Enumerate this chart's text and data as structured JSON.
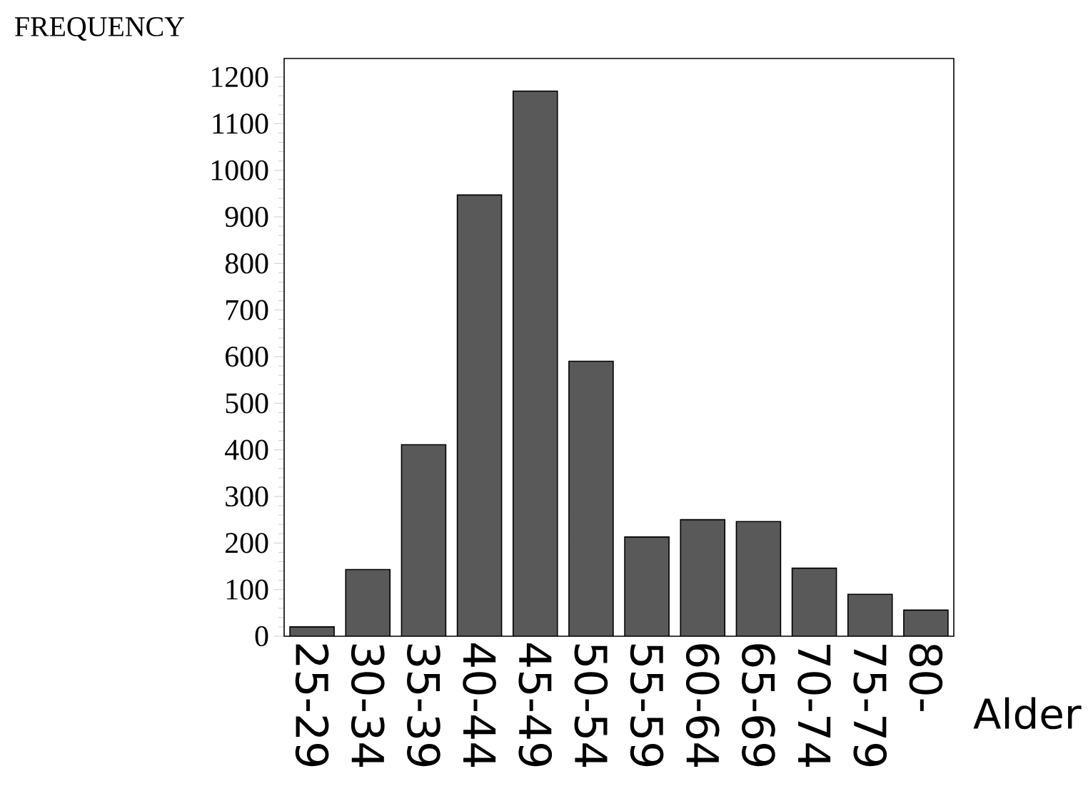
{
  "chart_data": {
    "type": "bar",
    "xlabel": "Alder",
    "ylabel": "FREQUENCY",
    "categories": [
      "25-29",
      "30-34",
      "35-39",
      "40-44",
      "45-49",
      "50-54",
      "55-59",
      "60-64",
      "65-69",
      "70-74",
      "75-79",
      "80-"
    ],
    "values": [
      20,
      143,
      411,
      947,
      1170,
      590,
      213,
      250,
      246,
      146,
      90,
      56
    ],
    "color": "#595959",
    "ylim": [
      0,
      1240
    ],
    "yticks": [
      0,
      100,
      200,
      300,
      400,
      500,
      600,
      700,
      800,
      900,
      1000,
      1100,
      1200
    ]
  }
}
